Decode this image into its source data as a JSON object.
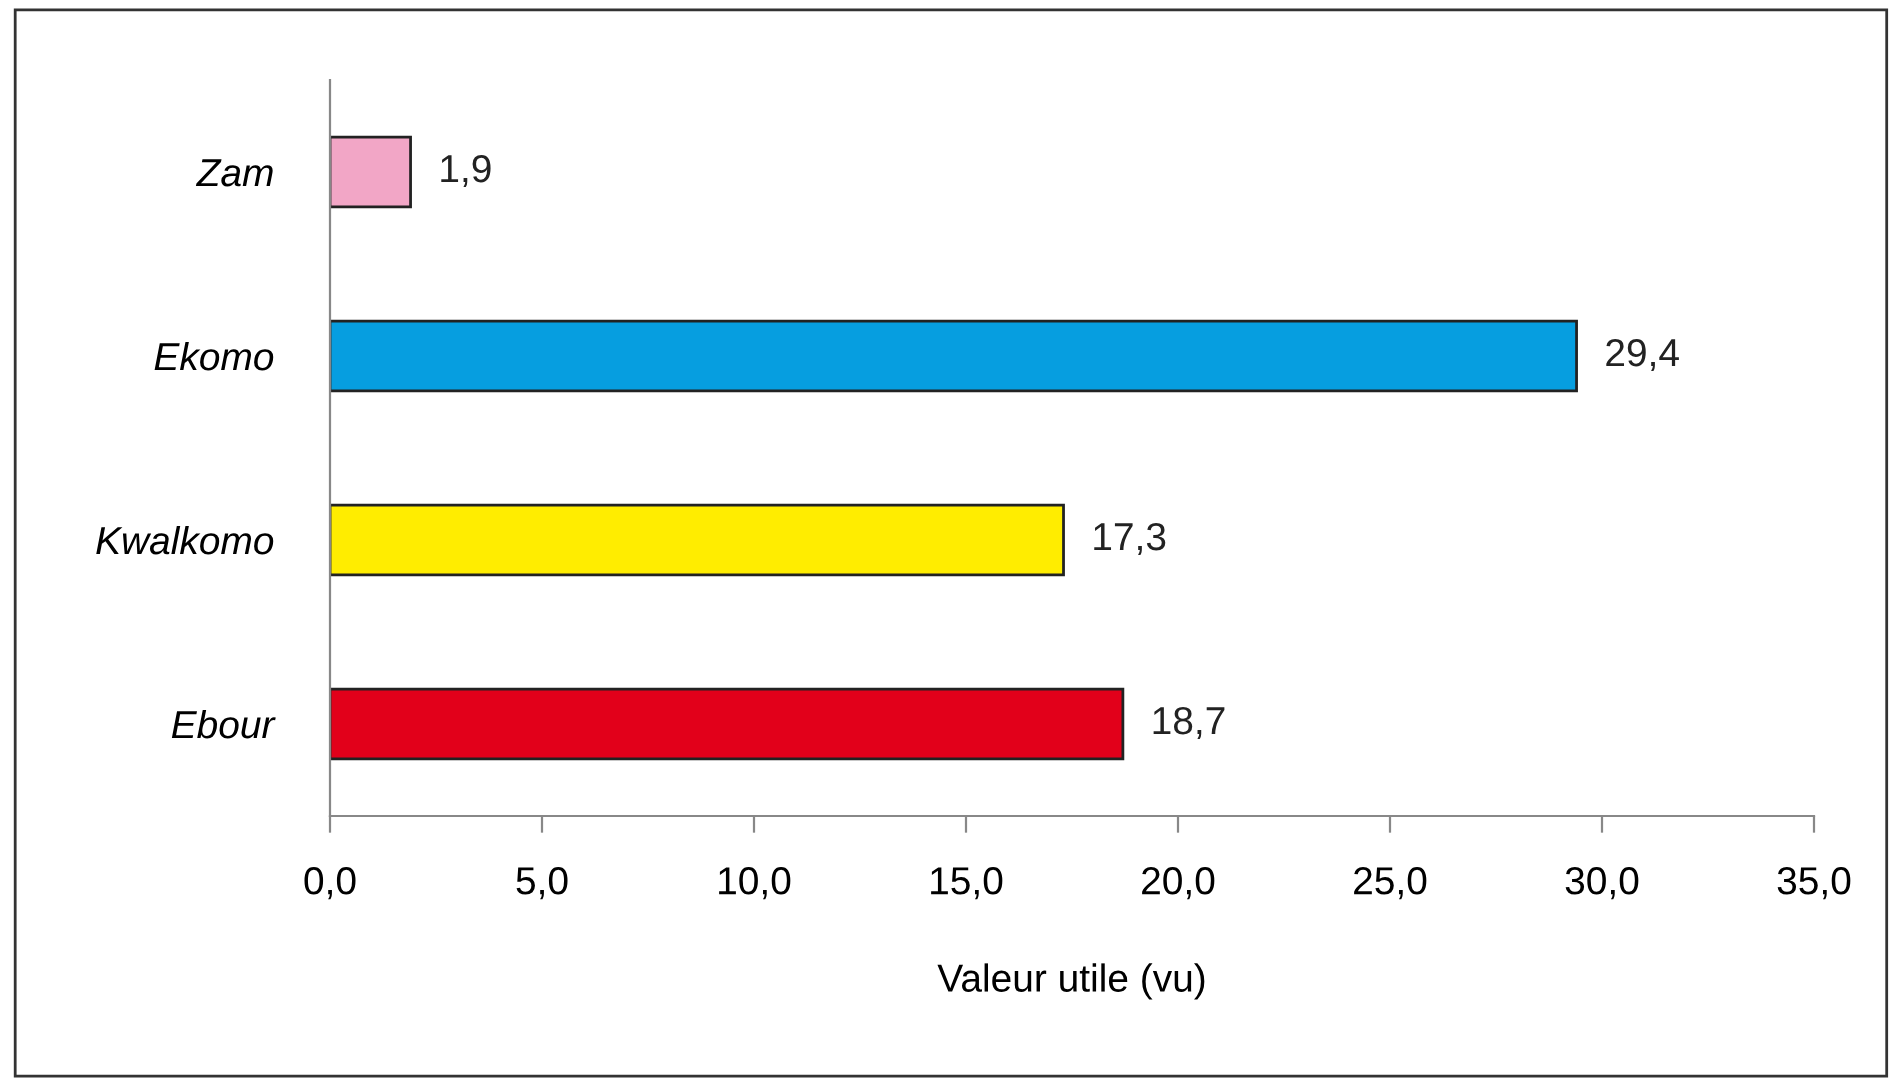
{
  "chart_data": {
    "type": "bar",
    "orientation": "horizontal",
    "xlabel": "Valeur utile (vu)",
    "categories": [
      "Zam",
      "Ekomo",
      "Kwalkomo",
      "Ebour"
    ],
    "values": [
      1.9,
      29.4,
      17.3,
      18.7
    ],
    "colors": [
      "#f2a6c6",
      "#069ee0",
      "#ffed00",
      "#e2001a"
    ],
    "value_labels": [
      "1,9",
      "29,4",
      "17,3",
      "18,7"
    ],
    "xlim": [
      0,
      35
    ],
    "xticks": [
      {
        "value": 0,
        "label": "0,0"
      },
      {
        "value": 5,
        "label": "5,0"
      },
      {
        "value": 10,
        "label": "10,0"
      },
      {
        "value": 15,
        "label": "15,0"
      },
      {
        "value": 20,
        "label": "20,0"
      },
      {
        "value": 25,
        "label": "25,0"
      },
      {
        "value": 30,
        "label": "30,0"
      },
      {
        "value": 35,
        "label": "35,0"
      }
    ],
    "grid": false
  }
}
